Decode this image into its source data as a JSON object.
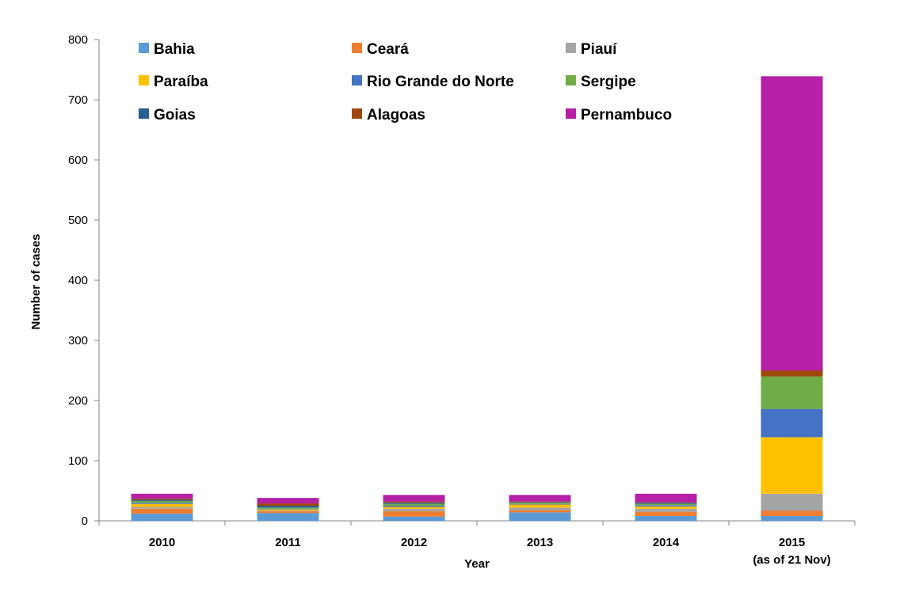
{
  "chart_data": {
    "type": "bar",
    "stacked": true,
    "xlabel": "Year",
    "ylabel": "Number of cases",
    "ylim": [
      0,
      800
    ],
    "yticks": [
      0,
      100,
      200,
      300,
      400,
      500,
      600,
      700,
      800
    ],
    "grid": false,
    "legend_position": "top",
    "categories": [
      [
        "2010"
      ],
      [
        "2011"
      ],
      [
        "2012"
      ],
      [
        "2013"
      ],
      [
        "2014"
      ],
      [
        "2015",
        "(as of 21 Nov)"
      ]
    ],
    "series": [
      {
        "name": "Bahia",
        "color": "#5B9BD5",
        "values": [
          12,
          13,
          7,
          14,
          8,
          8
        ]
      },
      {
        "name": "Ceará",
        "color": "#ED7D31",
        "values": [
          8,
          3,
          9,
          4,
          7,
          9
        ]
      },
      {
        "name": "Piauí",
        "color": "#A5A5A5",
        "values": [
          3,
          1,
          4,
          4,
          5,
          28
        ]
      },
      {
        "name": "Paraíba",
        "color": "#FFC000",
        "values": [
          5,
          2,
          3,
          5,
          4,
          94
        ]
      },
      {
        "name": "Rio Grande do Norte",
        "color": "#4472C4",
        "values": [
          2,
          1,
          2,
          1,
          2,
          47
        ]
      },
      {
        "name": "Sergipe",
        "color": "#70AD47",
        "values": [
          3,
          2,
          3,
          2,
          2,
          54
        ]
      },
      {
        "name": "Goias",
        "color": "#255E91",
        "values": [
          2,
          3,
          2,
          1,
          2,
          0
        ]
      },
      {
        "name": "Alagoas",
        "color": "#9E480E",
        "values": [
          2,
          4,
          2,
          1,
          1,
          10
        ]
      },
      {
        "name": "Pernambuco",
        "color": "#B61FA6",
        "values": [
          8,
          9,
          11,
          11,
          14,
          489
        ]
      }
    ]
  }
}
